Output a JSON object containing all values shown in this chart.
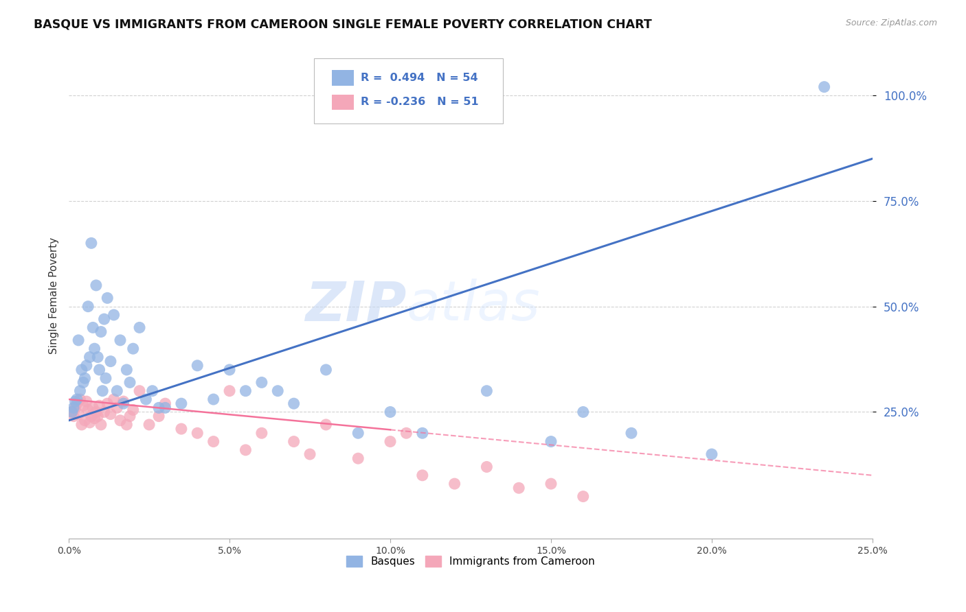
{
  "title": "BASQUE VS IMMIGRANTS FROM CAMEROON SINGLE FEMALE POVERTY CORRELATION CHART",
  "source": "Source: ZipAtlas.com",
  "ylabel": "Single Female Poverty",
  "legend_label1": "Basques",
  "legend_label2": "Immigrants from Cameroon",
  "r1": "0.494",
  "n1": "54",
  "r2": "-0.236",
  "n2": "51",
  "blue_color": "#92B4E3",
  "pink_color": "#F4A7B9",
  "blue_line_color": "#4472C4",
  "pink_line_color": "#F4729A",
  "watermark_color": "#C8D8F0",
  "background_color": "#FFFFFF",
  "grid_color": "#CCCCCC",
  "blue_scatter_x": [
    0.1,
    0.15,
    0.2,
    0.25,
    0.3,
    0.35,
    0.4,
    0.45,
    0.5,
    0.55,
    0.6,
    0.65,
    0.7,
    0.75,
    0.8,
    0.85,
    0.9,
    0.95,
    1.0,
    1.05,
    1.1,
    1.15,
    1.2,
    1.3,
    1.4,
    1.5,
    1.6,
    1.7,
    1.8,
    1.9,
    2.0,
    2.2,
    2.4,
    2.6,
    2.8,
    3.0,
    3.5,
    4.0,
    4.5,
    5.0,
    5.5,
    6.0,
    6.5,
    7.0,
    8.0,
    9.0,
    10.0,
    11.0,
    13.0,
    15.0,
    16.0,
    17.5,
    20.0,
    23.5
  ],
  "blue_scatter_y": [
    25.0,
    26.0,
    27.5,
    28.0,
    42.0,
    30.0,
    35.0,
    32.0,
    33.0,
    36.0,
    50.0,
    38.0,
    65.0,
    45.0,
    40.0,
    55.0,
    38.0,
    35.0,
    44.0,
    30.0,
    47.0,
    33.0,
    52.0,
    37.0,
    48.0,
    30.0,
    42.0,
    27.0,
    35.0,
    32.0,
    40.0,
    45.0,
    28.0,
    30.0,
    26.0,
    26.0,
    27.0,
    36.0,
    28.0,
    35.0,
    30.0,
    32.0,
    30.0,
    27.0,
    35.0,
    20.0,
    25.0,
    20.0,
    30.0,
    18.0,
    25.0,
    20.0,
    15.0,
    102.0
  ],
  "pink_scatter_x": [
    0.1,
    0.15,
    0.2,
    0.25,
    0.3,
    0.35,
    0.4,
    0.45,
    0.5,
    0.55,
    0.6,
    0.65,
    0.7,
    0.75,
    0.8,
    0.85,
    0.9,
    0.95,
    1.0,
    1.1,
    1.2,
    1.3,
    1.4,
    1.5,
    1.6,
    1.7,
    1.8,
    1.9,
    2.0,
    2.2,
    2.5,
    2.8,
    3.0,
    3.5,
    4.0,
    4.5,
    5.0,
    5.5,
    6.0,
    7.0,
    7.5,
    8.0,
    9.0,
    10.0,
    10.5,
    11.0,
    12.0,
    13.0,
    14.0,
    15.0,
    16.0
  ],
  "pink_scatter_y": [
    25.0,
    24.0,
    26.0,
    27.0,
    24.5,
    28.0,
    22.0,
    26.5,
    23.0,
    27.5,
    25.5,
    22.5,
    24.0,
    26.0,
    23.5,
    25.0,
    24.0,
    26.5,
    22.0,
    25.0,
    27.0,
    24.5,
    28.0,
    26.0,
    23.0,
    27.5,
    22.0,
    24.0,
    25.5,
    30.0,
    22.0,
    24.0,
    27.0,
    21.0,
    20.0,
    18.0,
    30.0,
    16.0,
    20.0,
    18.0,
    15.0,
    22.0,
    14.0,
    18.0,
    20.0,
    10.0,
    8.0,
    12.0,
    7.0,
    8.0,
    5.0
  ],
  "blue_line_x0": 0.0,
  "blue_line_x1": 25.0,
  "blue_line_y0": 23.0,
  "blue_line_y1": 85.0,
  "pink_line_x0": 0.0,
  "pink_line_x1": 25.0,
  "pink_line_y0": 28.0,
  "pink_line_y1": 10.0,
  "pink_dash_start_x": 10.0,
  "xlim": [
    0,
    25.0
  ],
  "ylim": [
    -5,
    110
  ],
  "yticks": [
    25,
    50,
    75,
    100
  ],
  "xticks": [
    0,
    5,
    10,
    15,
    20,
    25
  ]
}
